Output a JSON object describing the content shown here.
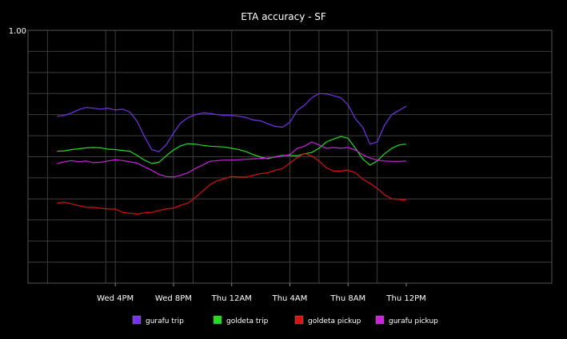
{
  "chart_data": {
    "type": "line",
    "title": "ETA accuracy - SF",
    "xlabel": "",
    "ylabel": "",
    "y_top_label": "1.00",
    "ylim": [
      0.4,
      1.0
    ],
    "y_grid_step": 0.05,
    "grid": true,
    "x_range_hours": [
      -2.0,
      34.0
    ],
    "x_ticks": [
      {
        "label": "Wed  4PM",
        "hour": 4
      },
      {
        "label": "Wed  8PM",
        "hour": 8
      },
      {
        "label": "Thu 12AM",
        "hour": 12
      },
      {
        "label": "Thu  4AM",
        "hour": 16
      },
      {
        "label": "Thu  8AM",
        "hour": 20
      },
      {
        "label": "Thu 12PM",
        "hour": 24
      }
    ],
    "x_minor_grid_hours": [
      -0.66,
      3.34,
      4.0,
      8.0,
      9.34,
      12.0,
      16.0,
      18.0,
      20.0,
      22.0
    ],
    "legend_position": "bottom",
    "series": [
      {
        "name": "gurafu trip",
        "color": "#7733ee",
        "x": [
          0.0,
          0.5,
          1.0,
          1.5,
          2.0,
          2.5,
          3.0,
          3.5,
          4.0,
          4.5,
          5.0,
          5.5,
          6.0,
          6.5,
          7.0,
          7.5,
          8.0,
          8.5,
          9.0,
          9.5,
          10.0,
          10.5,
          11.0,
          11.5,
          12.0,
          12.5,
          13.0,
          13.5,
          14.0,
          14.5,
          15.0,
          15.5,
          16.0,
          16.5,
          17.0,
          17.5,
          18.0,
          18.5,
          19.0,
          19.5,
          20.0,
          20.5,
          21.0,
          21.5,
          22.0,
          22.5,
          23.0,
          23.5,
          24.0
        ],
        "values": [
          0.796,
          0.798,
          0.804,
          0.812,
          0.817,
          0.815,
          0.813,
          0.815,
          0.811,
          0.813,
          0.806,
          0.784,
          0.748,
          0.717,
          0.712,
          0.728,
          0.756,
          0.78,
          0.793,
          0.8,
          0.804,
          0.803,
          0.8,
          0.798,
          0.798,
          0.796,
          0.793,
          0.787,
          0.785,
          0.778,
          0.772,
          0.77,
          0.782,
          0.81,
          0.822,
          0.84,
          0.85,
          0.849,
          0.845,
          0.84,
          0.823,
          0.79,
          0.77,
          0.73,
          0.735,
          0.775,
          0.8,
          0.81,
          0.82
        ]
      },
      {
        "name": "goldeta trip",
        "color": "#22dd22",
        "x": [
          0.0,
          0.5,
          1.0,
          1.5,
          2.0,
          2.5,
          3.0,
          3.5,
          4.0,
          4.5,
          5.0,
          5.5,
          6.0,
          6.5,
          7.0,
          7.5,
          8.0,
          8.5,
          9.0,
          9.5,
          10.0,
          10.5,
          11.0,
          11.5,
          12.0,
          12.5,
          13.0,
          13.5,
          14.0,
          14.5,
          15.0,
          15.5,
          16.0,
          16.5,
          17.0,
          17.5,
          18.0,
          18.5,
          19.0,
          19.5,
          20.0,
          20.5,
          21.0,
          21.5,
          22.0,
          22.5,
          23.0,
          23.5,
          24.0
        ],
        "values": [
          0.713,
          0.714,
          0.717,
          0.719,
          0.721,
          0.722,
          0.721,
          0.718,
          0.717,
          0.715,
          0.713,
          0.703,
          0.692,
          0.684,
          0.687,
          0.702,
          0.716,
          0.726,
          0.731,
          0.73,
          0.727,
          0.725,
          0.724,
          0.723,
          0.72,
          0.717,
          0.712,
          0.705,
          0.699,
          0.695,
          0.7,
          0.703,
          0.703,
          0.702,
          0.707,
          0.71,
          0.72,
          0.735,
          0.742,
          0.748,
          0.744,
          0.72,
          0.695,
          0.68,
          0.69,
          0.707,
          0.72,
          0.728,
          0.73
        ]
      },
      {
        "name": "goldeta pickup",
        "color": "#dd1111",
        "x": [
          0.0,
          0.5,
          1.0,
          1.5,
          2.0,
          2.5,
          3.0,
          3.5,
          4.0,
          4.5,
          5.0,
          5.5,
          6.0,
          6.5,
          7.0,
          7.5,
          8.0,
          8.5,
          9.0,
          9.5,
          10.0,
          10.5,
          11.0,
          11.5,
          12.0,
          12.5,
          13.0,
          13.5,
          14.0,
          14.5,
          15.0,
          15.5,
          16.0,
          16.5,
          17.0,
          17.5,
          18.0,
          18.5,
          19.0,
          19.5,
          20.0,
          20.5,
          21.0,
          21.5,
          22.0,
          22.5,
          23.0,
          23.5,
          24.0
        ],
        "values": [
          0.59,
          0.592,
          0.588,
          0.584,
          0.58,
          0.58,
          0.578,
          0.576,
          0.576,
          0.568,
          0.566,
          0.564,
          0.567,
          0.568,
          0.572,
          0.576,
          0.578,
          0.585,
          0.59,
          0.603,
          0.618,
          0.634,
          0.643,
          0.648,
          0.653,
          0.652,
          0.652,
          0.656,
          0.66,
          0.662,
          0.668,
          0.672,
          0.685,
          0.698,
          0.708,
          0.702,
          0.69,
          0.674,
          0.666,
          0.666,
          0.668,
          0.662,
          0.647,
          0.637,
          0.625,
          0.61,
          0.6,
          0.599,
          0.597
        ]
      },
      {
        "name": "gurafu pickup",
        "color": "#cc22dd",
        "x": [
          0.0,
          0.5,
          1.0,
          1.5,
          2.0,
          2.5,
          3.0,
          3.5,
          4.0,
          4.5,
          5.0,
          5.5,
          6.0,
          6.5,
          7.0,
          7.5,
          8.0,
          8.5,
          9.0,
          9.5,
          10.0,
          10.5,
          11.0,
          11.5,
          12.0,
          12.5,
          13.0,
          13.5,
          14.0,
          14.5,
          15.0,
          15.5,
          16.0,
          16.5,
          17.0,
          17.5,
          18.0,
          18.5,
          19.0,
          19.5,
          20.0,
          20.5,
          21.0,
          21.5,
          22.0,
          22.5,
          23.0,
          23.5,
          24.0
        ],
        "values": [
          0.684,
          0.688,
          0.691,
          0.688,
          0.69,
          0.686,
          0.687,
          0.69,
          0.693,
          0.691,
          0.688,
          0.685,
          0.676,
          0.668,
          0.658,
          0.653,
          0.652,
          0.656,
          0.662,
          0.672,
          0.68,
          0.689,
          0.691,
          0.692,
          0.692,
          0.693,
          0.694,
          0.695,
          0.696,
          0.697,
          0.699,
          0.702,
          0.705,
          0.72,
          0.725,
          0.735,
          0.728,
          0.72,
          0.722,
          0.72,
          0.722,
          0.716,
          0.705,
          0.697,
          0.692,
          0.69,
          0.689,
          0.689,
          0.69
        ]
      }
    ]
  }
}
